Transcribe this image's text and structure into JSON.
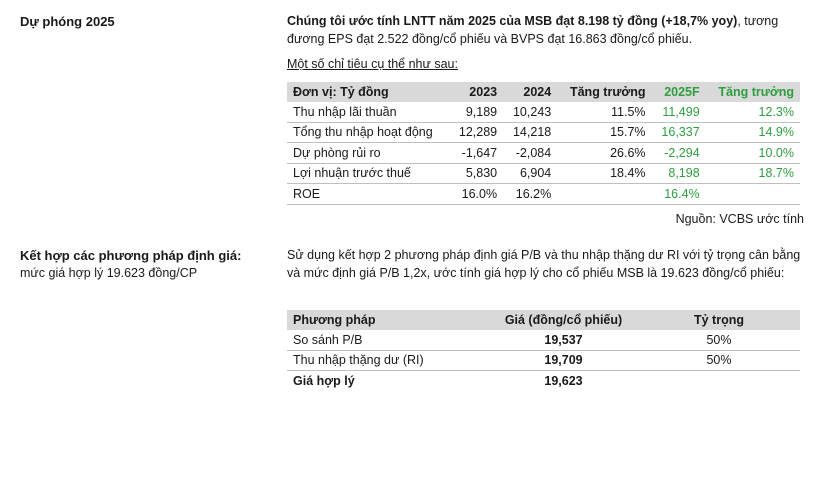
{
  "section1": {
    "title": "Dự phóng 2025",
    "para_bold": "Chúng tôi ước tính LNTT năm 2025 của MSB đạt 8.198 tỷ đồng (+18,7% yoy)",
    "para_rest": ", tương đương EPS đạt 2.522 đồng/cổ phiếu và BVPS đạt 16.863 đồng/cổ phiếu.",
    "subhead": "Một số chỉ tiêu cụ thể như sau:",
    "table": {
      "headers": [
        "Đơn vị: Tỷ đồng",
        "2023",
        "2024",
        "Tăng trưởng",
        "2025F",
        "Tăng trưởng"
      ],
      "rows": [
        [
          "Thu nhập lãi thuần",
          "9,189",
          "10,243",
          "11.5%",
          "11,499",
          "12.3%"
        ],
        [
          "Tổng thu nhập hoạt động",
          "12,289",
          "14,218",
          "15.7%",
          "16,337",
          "14.9%"
        ],
        [
          "Dự phòng rủi ro",
          "-1,647",
          "-2,084",
          "26.6%",
          "-2,294",
          "10.0%"
        ],
        [
          "Lợi nhuận trước thuế",
          "5,830",
          "6,904",
          "18.4%",
          "8,198",
          "18.7%"
        ],
        [
          "ROE",
          "16.0%",
          "16.2%",
          "",
          "16.4%",
          ""
        ]
      ]
    },
    "source": "Nguồn: VCBS ước tính"
  },
  "section2": {
    "title": "Kết hợp các phương pháp định giá:",
    "subtitle": "mức giá hợp lý 19.623 đồng/CP",
    "para": "Sử dụng kết hợp 2 phương pháp định giá P/B và thu nhập thặng dư RI với tỷ trọng cân bằng và mức định giá P/B 1,2x, ước tính giá hợp lý cho cổ phiếu MSB là 19.623 đồng/cổ phiếu:",
    "table": {
      "headers": [
        "Phương pháp",
        "Giá (đồng/cổ phiếu)",
        "Tỷ trọng"
      ],
      "rows": [
        [
          "So sánh P/B",
          "19,537",
          "50%"
        ],
        [
          "Thu nhập thặng dư (RI)",
          "19,709",
          "50%"
        ],
        [
          "Giá hợp lý",
          "19,623",
          ""
        ]
      ]
    }
  },
  "colors": {
    "green": "#2e9e3e",
    "header_bg": "#d9d9d9"
  }
}
